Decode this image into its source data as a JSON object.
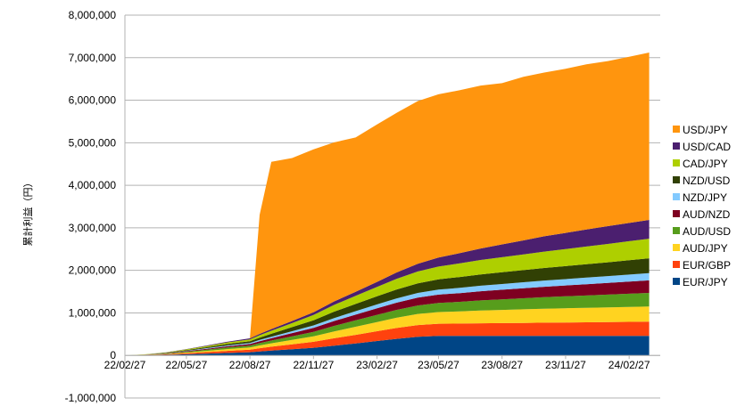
{
  "chart_data": {
    "type": "area",
    "stacked": true,
    "title": "",
    "xlabel": "",
    "ylabel": "累計利益（円）",
    "ylim": [
      -1000000,
      8000000
    ],
    "y_ticks": [
      "8,000,000",
      "7,000,000",
      "6,000,000",
      "5,000,000",
      "4,000,000",
      "3,000,000",
      "2,000,000",
      "1,000,000",
      "0",
      "-1,000,000"
    ],
    "y_tick_values": [
      8000000,
      7000000,
      6000000,
      5000000,
      4000000,
      3000000,
      2000000,
      1000000,
      0,
      -1000000
    ],
    "x_ticks": [
      "22/02/27",
      "22/05/27",
      "22/08/27",
      "22/11/27",
      "23/02/27",
      "23/05/27",
      "23/08/27",
      "23/11/27",
      "24/02/27"
    ],
    "grid": "horizontal",
    "legend_position": "right",
    "x_dates": [
      "22/02/27",
      "22/03/27",
      "22/04/27",
      "22/05/27",
      "22/06/27",
      "22/07/27",
      "22/08/27",
      "22/09/10",
      "22/09/27",
      "22/10/27",
      "22/11/27",
      "22/12/27",
      "23/01/27",
      "23/02/27",
      "23/03/27",
      "23/04/27",
      "23/05/27",
      "23/06/27",
      "23/07/27",
      "23/08/27",
      "23/09/27",
      "23/10/27",
      "23/11/27",
      "23/12/27",
      "24/01/27",
      "24/02/27",
      "24/03/27"
    ],
    "series": [
      {
        "name": "EUR/JPY",
        "color": "#004586",
        "values": [
          0,
          5000,
          15000,
          28000,
          45000,
          60000,
          75000,
          95000,
          115000,
          145000,
          180000,
          230000,
          280000,
          340000,
          390000,
          440000,
          460000,
          460000,
          460000,
          460000,
          460000,
          460000,
          460000,
          460000,
          460000,
          460000,
          460000
        ]
      },
      {
        "name": "EUR/GBP",
        "color": "#ff420e",
        "values": [
          0,
          4000,
          10000,
          22000,
          35000,
          50000,
          60000,
          75000,
          90000,
          115000,
          140000,
          175000,
          205000,
          230000,
          255000,
          275000,
          285000,
          290000,
          295000,
          300000,
          305000,
          310000,
          315000,
          320000,
          325000,
          330000,
          335000
        ]
      },
      {
        "name": "AUD/JPY",
        "color": "#ffd320",
        "values": [
          0,
          3000,
          8000,
          18000,
          30000,
          42000,
          52000,
          65000,
          80000,
          105000,
          130000,
          160000,
          190000,
          215000,
          240000,
          260000,
          275000,
          285000,
          300000,
          310000,
          320000,
          330000,
          335000,
          340000,
          345000,
          350000,
          355000
        ]
      },
      {
        "name": "AUD/USD",
        "color": "#579d1c",
        "values": [
          0,
          3000,
          9000,
          18000,
          28000,
          38000,
          45000,
          55000,
          65000,
          85000,
          105000,
          130000,
          150000,
          170000,
          185000,
          200000,
          215000,
          225000,
          240000,
          250000,
          260000,
          270000,
          280000,
          290000,
          300000,
          310000,
          320000
        ]
      },
      {
        "name": "AUD/NZD",
        "color": "#7e0021",
        "values": [
          0,
          2000,
          6000,
          14000,
          22000,
          30000,
          36000,
          45000,
          55000,
          75000,
          95000,
          115000,
          135000,
          155000,
          170000,
          185000,
          195000,
          205000,
          215000,
          225000,
          235000,
          245000,
          255000,
          265000,
          275000,
          285000,
          295000
        ]
      },
      {
        "name": "NZD/JPY",
        "color": "#83caff",
        "values": [
          0,
          2000,
          5000,
          10000,
          15000,
          20000,
          25000,
          30000,
          35000,
          45000,
          55000,
          70000,
          80000,
          90000,
          100000,
          110000,
          120000,
          125000,
          130000,
          135000,
          140000,
          145000,
          150000,
          155000,
          160000,
          165000,
          170000
        ]
      },
      {
        "name": "NZD/USD",
        "color": "#314004",
        "values": [
          0,
          3000,
          8000,
          16000,
          25000,
          35000,
          42000,
          55000,
          70000,
          95000,
          120000,
          150000,
          170000,
          190000,
          210000,
          225000,
          240000,
          255000,
          265000,
          275000,
          285000,
          295000,
          305000,
          315000,
          325000,
          340000,
          350000
        ]
      },
      {
        "name": "CAD/JPY",
        "color": "#aecf00",
        "values": [
          0,
          3000,
          8000,
          16000,
          25000,
          35000,
          42000,
          55000,
          70000,
          95000,
          125000,
          160000,
          190000,
          220000,
          250000,
          280000,
          300000,
          320000,
          340000,
          355000,
          370000,
          385000,
          400000,
          415000,
          430000,
          445000,
          460000
        ]
      },
      {
        "name": "USD/CAD",
        "color": "#4b1f6f",
        "values": [
          0,
          1000,
          3000,
          8000,
          12000,
          18000,
          25000,
          32000,
          40000,
          50000,
          65000,
          80000,
          95000,
          120000,
          150000,
          180000,
          210000,
          240000,
          270000,
          300000,
          330000,
          360000,
          380000,
          400000,
          420000,
          430000,
          440000
        ]
      },
      {
        "name": "USD/JPY",
        "color": "#ff950e",
        "values": [
          0,
          0,
          0,
          0,
          0,
          0,
          0,
          2800000,
          3930000,
          3830000,
          3830000,
          3740000,
          3630000,
          3700000,
          3750000,
          3825000,
          3840000,
          3830000,
          3830000,
          3790000,
          3845000,
          3850000,
          3860000,
          3885000,
          3880000,
          3905000,
          3935000
        ]
      }
    ]
  }
}
